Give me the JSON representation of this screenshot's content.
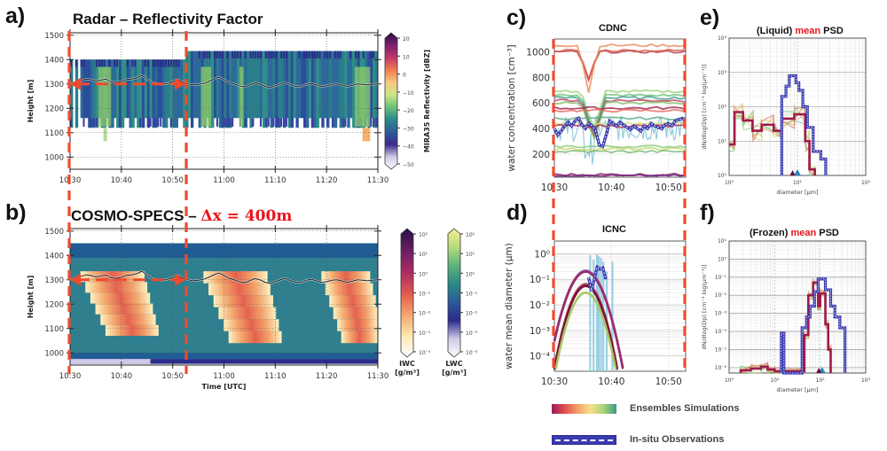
{
  "panels": {
    "a": {
      "letter": "a)",
      "title": "Radar – Reflectivity Factor"
    },
    "b": {
      "letter": "b)",
      "title_prefix": "COSMO-SPECS – ",
      "title_highlight": "Δx = 400m"
    },
    "c": {
      "letter": "c)",
      "title": "CDNC"
    },
    "d": {
      "letter": "d)",
      "title": "ICNC"
    },
    "e": {
      "letter": "e)",
      "title_prefix": "(Liquid) ",
      "title_highlight": "mean",
      "title_suffix": " PSD"
    },
    "f": {
      "letter": "f)",
      "title_prefix": "(Frozen) ",
      "title_highlight": "mean",
      "title_suffix": " PSD"
    }
  },
  "legend": {
    "ensembles_label": "Ensembles Simulations",
    "insitu_label": "In-situ Observations"
  },
  "colors": {
    "highlight_red": "#e8141b",
    "bracket_red": "#f04a2e",
    "obs_blue": "#3a3ab0",
    "insitu_light": "#8cc8de"
  },
  "chart_data": [
    {
      "id": "a",
      "type": "heatmap",
      "title": "Radar – Reflectivity Factor",
      "xlabel": "",
      "ylabel": "Height [m]",
      "x_tick_labels": [
        "10:30",
        "10:40",
        "10:50",
        "11:00",
        "11:10",
        "11:20",
        "11:30"
      ],
      "x_range_minutes": [
        0,
        60
      ],
      "y_tick_labels": [
        "1000",
        "1100",
        "1200",
        "1300",
        "1400",
        "1500"
      ],
      "ylim": [
        950,
        1510
      ],
      "grid": true,
      "colorbar": {
        "label": "MIRA35 Reflectivity [dBZ]",
        "ticks": [
          "20",
          "10",
          "0",
          "−10",
          "−20",
          "−30",
          "−40",
          "−50"
        ],
        "range": [
          -50,
          20
        ]
      },
      "cloud_base_m": 1160,
      "cloud_top_m": 1400,
      "cloud_top_late_m": 1435,
      "flight_track_m": [
        1300,
        1305,
        1312,
        1320,
        1318,
        1312,
        1316,
        1320,
        1308,
        1306,
        1310,
        1318,
        1320,
        1325,
        1335,
        1320,
        1305,
        1300,
        1298,
        1302,
        1310,
        1318,
        1308,
        1300,
        1296,
        1298,
        1302,
        1310,
        1320,
        1328,
        1318,
        1306,
        1300,
        1292,
        1288,
        1296,
        1305,
        1300,
        1290,
        1284,
        1292,
        1300,
        1306,
        1296,
        1290,
        1288,
        1298,
        1302,
        1296,
        1290,
        1292,
        1298,
        1300,
        1295,
        1290,
        1294,
        1300,
        1298,
        1296,
        1298,
        1300
      ],
      "annotation": "red dashed bracket 10:30–10:53 with arrow at ~1300 m"
    },
    {
      "id": "b",
      "type": "heatmap",
      "title": "COSMO-SPECS – Δx = 400m",
      "xlabel": "Time [UTC]",
      "ylabel": "Height [m]",
      "x_tick_labels": [
        "10:30",
        "10:40",
        "10:50",
        "11:00",
        "11:10",
        "11:20",
        "11:30"
      ],
      "x_range_minutes": [
        0,
        60
      ],
      "y_tick_labels": [
        "1000",
        "1100",
        "1200",
        "1300",
        "1400",
        "1500"
      ],
      "ylim": [
        950,
        1510
      ],
      "grid": true,
      "colorbars": [
        {
          "label": "IWC [g/m³]",
          "ticks": [
            "10²",
            "10¹",
            "10⁰",
            "10⁻¹",
            "10⁻²",
            "10⁻³",
            "10⁻⁴"
          ],
          "range": [
            0.0001,
            100.0
          ]
        },
        {
          "label": "LWC [g/m³]",
          "ticks": [
            "10²",
            "10¹",
            "10⁰",
            "10⁻¹",
            "10⁻²",
            "10⁻³",
            "10⁻⁴"
          ],
          "range": [
            0.0001,
            100.0
          ]
        }
      ],
      "liquid_layer_m": [
        975,
        1450
      ],
      "ice_plumes": [
        {
          "start_min": 2,
          "end_min": 16,
          "top_m": 1335,
          "bottom_m": 1070
        },
        {
          "start_min": 26,
          "end_min": 40,
          "top_m": 1335,
          "bottom_m": 1040
        },
        {
          "start_min": 49,
          "end_min": 60,
          "top_m": 1335,
          "bottom_m": 1040
        }
      ]
    },
    {
      "id": "c",
      "type": "line",
      "title": "CDNC",
      "ylabel": "water concentration [cm⁻³]",
      "x_tick_labels": [
        "10:30",
        "10:40",
        "10:50"
      ],
      "x_range_minutes": [
        0,
        23
      ],
      "y_tick_labels": [
        "200",
        "400",
        "600",
        "800",
        "1000"
      ],
      "ylim": [
        20,
        1100
      ],
      "grid": true,
      "observations_mean": [
        400,
        350,
        380,
        420,
        450,
        420,
        460,
        480,
        430,
        400,
        440,
        420,
        380,
        270,
        260,
        350,
        460,
        440,
        420,
        450,
        430,
        410,
        390,
        420,
        400,
        380,
        420,
        400,
        440,
        420,
        410,
        400,
        430,
        440,
        420,
        460,
        470,
        480,
        460
      ],
      "ensemble_levels": [
        1000,
        1010,
        1050,
        690,
        660,
        640,
        620,
        600,
        560,
        540,
        480,
        440,
        420,
        260,
        240,
        220,
        40,
        30
      ]
    },
    {
      "id": "d",
      "type": "line",
      "title": "ICNC",
      "ylabel": "water mean diameter (μm)",
      "x_tick_labels": [
        "10:30",
        "10:40",
        "10:50"
      ],
      "x_range_minutes": [
        0,
        23
      ],
      "y_tick_labels": [
        "10⁰",
        "10⁻¹",
        "10⁻²",
        "10⁻³",
        "10⁻⁴"
      ],
      "ylim_log10": [
        -4.6,
        0.5
      ],
      "grid": true,
      "ensemble_peaks": [
        {
          "peak": 0.22,
          "t": 5.5
        },
        {
          "peak": 0.2,
          "t": 5.5
        },
        {
          "peak": 0.065,
          "t": 5.5
        },
        {
          "peak": 0.055,
          "t": 5.5
        },
        {
          "peak": 0.03,
          "t": 5.5
        }
      ],
      "observations": [
        {
          "t": 6.0,
          "v": 0.12
        },
        {
          "t": 6.5,
          "v": 0.035
        },
        {
          "t": 7.0,
          "v": 0.1
        },
        {
          "t": 7.5,
          "v": 0.3
        },
        {
          "t": 8.0,
          "v": 0.25
        },
        {
          "t": 8.5,
          "v": 0.28
        },
        {
          "t": 9.0,
          "v": 0.1
        }
      ]
    },
    {
      "id": "e",
      "type": "line",
      "title": "(Liquid) mean PSD",
      "xlabel": "diameter [μm]",
      "ylabel": "dN/dlog(Dp) [cm⁻³ log(μm⁻¹)]",
      "x_tick_labels": [
        "10⁰",
        "10¹",
        "10²"
      ],
      "y_tick_labels": [
        "10⁰",
        "10¹",
        "10²",
        "10³",
        "10⁴"
      ],
      "xlim_log10": [
        0,
        2
      ],
      "ylim_log10": [
        0,
        4
      ],
      "grid": true,
      "observations_step": [
        [
          5.9,
          1
        ],
        [
          5.9,
          200
        ],
        [
          6.8,
          200
        ],
        [
          6.8,
          400
        ],
        [
          7.6,
          400
        ],
        [
          7.6,
          800
        ],
        [
          9.5,
          800
        ],
        [
          9.5,
          500
        ],
        [
          10.5,
          500
        ],
        [
          10.5,
          300
        ],
        [
          12,
          300
        ],
        [
          12,
          100
        ],
        [
          14,
          100
        ],
        [
          14,
          25
        ],
        [
          17,
          25
        ],
        [
          17,
          5
        ],
        [
          22,
          5
        ],
        [
          22,
          3
        ],
        [
          26,
          3
        ],
        [
          26,
          1
        ]
      ],
      "ensemble_mean_step": [
        [
          1,
          8
        ],
        [
          1.2,
          8
        ],
        [
          1.2,
          70
        ],
        [
          1.6,
          70
        ],
        [
          1.6,
          40
        ],
        [
          2.2,
          40
        ],
        [
          2.2,
          20
        ],
        [
          3,
          20
        ],
        [
          3,
          30
        ],
        [
          4.5,
          30
        ],
        [
          4.5,
          20
        ],
        [
          5.9,
          20
        ],
        [
          5.9,
          45
        ],
        [
          9,
          45
        ],
        [
          9,
          60
        ],
        [
          13,
          60
        ],
        [
          13,
          10
        ],
        [
          15,
          10
        ],
        [
          15,
          1.5
        ],
        [
          18,
          1.5
        ],
        [
          18,
          1
        ]
      ]
    },
    {
      "id": "f",
      "type": "line",
      "title": "(Frozen) mean PSD",
      "xlabel": "diameter [μm]",
      "ylabel": "dN/dlog(Dp) [cm⁻³ log(μm⁻¹)]",
      "x_tick_labels": [
        "10⁰",
        "10¹",
        "10²",
        "10³"
      ],
      "y_tick_labels": [
        "10¹",
        "10⁰",
        "10⁻¹",
        "10⁻²",
        "10⁻³",
        "10⁻⁴",
        "10⁻⁵",
        "10⁻⁶"
      ],
      "xlim_log10": [
        0,
        3
      ],
      "ylim_log10": [
        -6.3,
        1
      ],
      "grid": true,
      "observations_step": [
        [
          14,
          -6.3
        ],
        [
          14,
          -4.1
        ],
        [
          16,
          -4.1
        ],
        [
          16,
          -6.3
        ],
        [
          40,
          -6.3
        ],
        [
          40,
          -3.8
        ],
        [
          50,
          -3.8
        ],
        [
          50,
          -3.2
        ],
        [
          60,
          -3.2
        ],
        [
          60,
          -2.6
        ],
        [
          75,
          -2.6
        ],
        [
          75,
          -1.8
        ],
        [
          90,
          -1.8
        ],
        [
          90,
          -1.1
        ],
        [
          130,
          -1.1
        ],
        [
          130,
          -1.7
        ],
        [
          170,
          -1.7
        ],
        [
          170,
          -2.6
        ],
        [
          210,
          -2.6
        ],
        [
          210,
          -3.2
        ],
        [
          270,
          -3.2
        ],
        [
          270,
          -3.8
        ],
        [
          350,
          -3.8
        ],
        [
          350,
          -6.3
        ]
      ],
      "ensemble_mean_step": [
        [
          1.8,
          -6.3
        ],
        [
          1.8,
          -6.15
        ],
        [
          3,
          -6.15
        ],
        [
          3,
          -6.05
        ],
        [
          5,
          -6.05
        ],
        [
          5,
          -5.95
        ],
        [
          7,
          -5.95
        ],
        [
          7,
          -6.1
        ],
        [
          10,
          -6.1
        ],
        [
          10,
          -6.2
        ],
        [
          45,
          -6.2
        ],
        [
          45,
          -4.2
        ],
        [
          55,
          -4.2
        ],
        [
          55,
          -2.0
        ],
        [
          70,
          -2.0
        ],
        [
          70,
          -1.3
        ],
        [
          90,
          -1.3
        ],
        [
          90,
          -2.6
        ],
        [
          100,
          -2.6
        ],
        [
          100,
          -1.9
        ],
        [
          130,
          -1.9
        ],
        [
          130,
          -3.6
        ],
        [
          150,
          -3.6
        ],
        [
          150,
          -5.0
        ],
        [
          170,
          -5.0
        ],
        [
          170,
          -6.3
        ]
      ]
    }
  ]
}
